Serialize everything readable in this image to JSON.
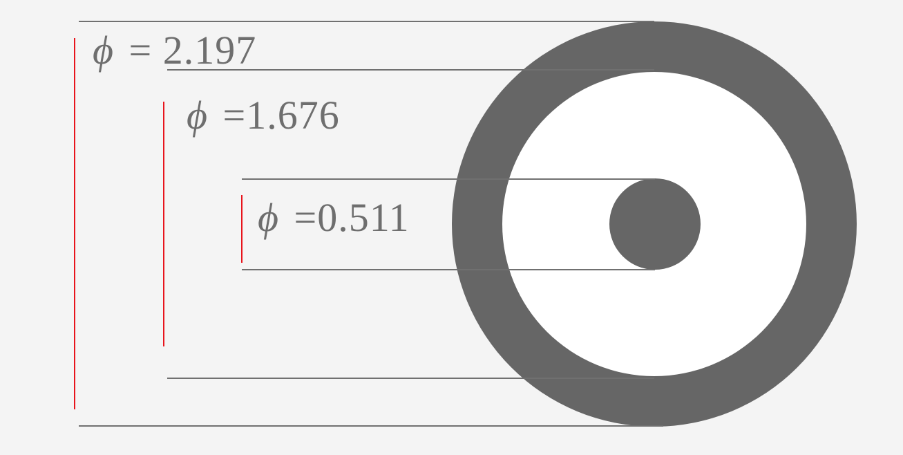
{
  "diagram": {
    "type": "concentric-circle-dimensions",
    "colors": {
      "background": "#f4f4f4",
      "ring": "#666666",
      "inner_fill": "#ffffff",
      "extension_line": "#707070",
      "dimension_marker": "#e8141c",
      "label_text": "#6e6e6e"
    },
    "dimensions": [
      {
        "id": "outer",
        "symbol": "ϕ",
        "text": "= 2.197",
        "diameter": 2.197
      },
      {
        "id": "middle",
        "symbol": "ϕ",
        "text": "=1.676",
        "diameter": 1.676
      },
      {
        "id": "inner",
        "symbol": "ϕ",
        "text": "=0.511",
        "diameter": 0.511
      }
    ]
  }
}
